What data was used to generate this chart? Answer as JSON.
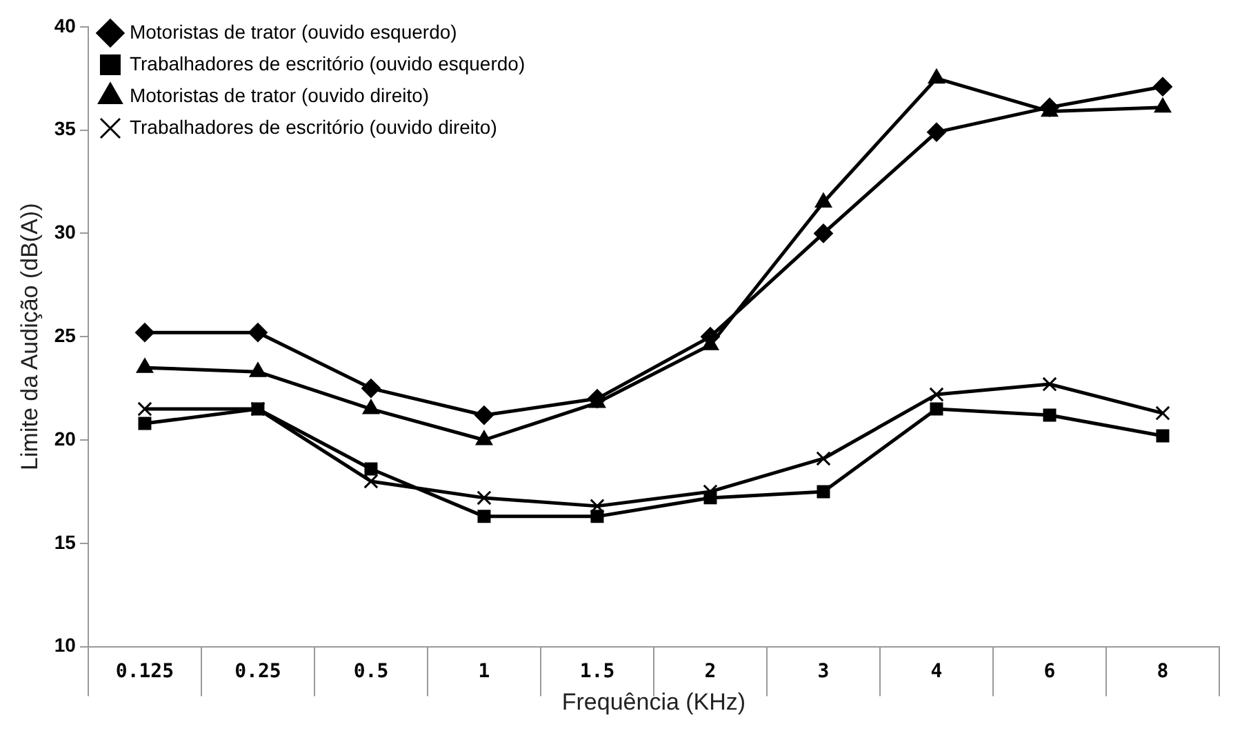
{
  "chart_data": {
    "type": "line",
    "xlabel": "Frequência (KHz)",
    "ylabel": "Limite da Audição (dB(A))",
    "categories": [
      "0.125",
      "0.25",
      "0.5",
      "1",
      "1.5",
      "2",
      "3",
      "4",
      "6",
      "8"
    ],
    "series": [
      {
        "name": "Motoristas de trator (ouvido esquerdo)",
        "color": "#000000",
        "marker": "diamond",
        "values": [
          25.2,
          25.2,
          22.5,
          21.2,
          22.0,
          25.0,
          30.0,
          34.9,
          36.1,
          37.1
        ]
      },
      {
        "name": "Trabalhadores de escritório (ouvido esquerdo)",
        "color": "#000000",
        "marker": "square",
        "values": [
          20.8,
          21.5,
          18.6,
          16.3,
          16.3,
          17.2,
          17.5,
          21.5,
          21.2,
          20.2
        ]
      },
      {
        "name": "Motoristas de trator (ouvido direito)",
        "color": "#000000",
        "marker": "triangle",
        "values": [
          23.5,
          23.3,
          21.5,
          20.0,
          21.8,
          24.6,
          31.5,
          37.5,
          35.9,
          36.1
        ]
      },
      {
        "name": "Trabalhadores de escritório (ouvido direito)",
        "color": "#000000",
        "marker": "cross",
        "values": [
          21.5,
          21.5,
          18.0,
          17.2,
          16.8,
          17.5,
          19.1,
          22.2,
          22.7,
          21.3
        ]
      }
    ],
    "ylim": [
      10,
      40
    ],
    "yticks": [
      10,
      15,
      20,
      25,
      30,
      35,
      40
    ],
    "grid": false,
    "legend": "top left",
    "line_style": "solid"
  }
}
